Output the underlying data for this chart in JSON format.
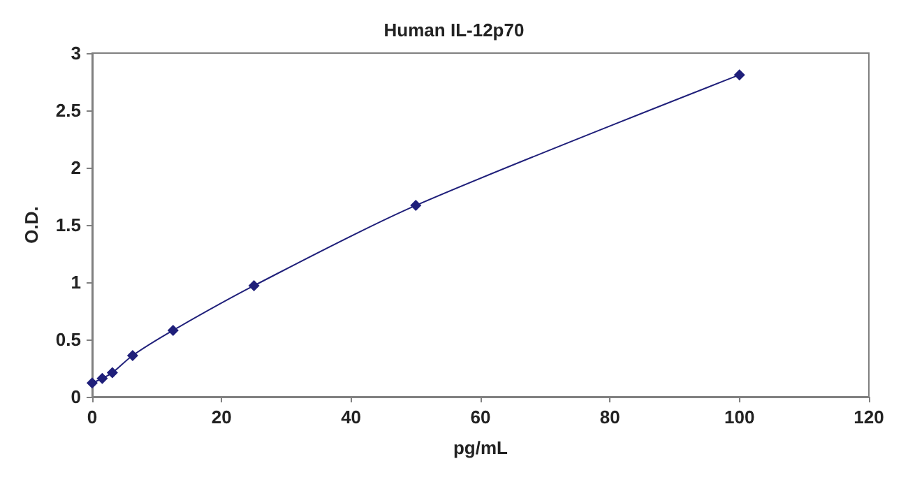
{
  "chart_data": {
    "type": "line",
    "title": "Human IL-12p70",
    "xlabel": "pg/mL",
    "ylabel": "O.D.",
    "x": [
      0,
      1.56,
      3.125,
      6.25,
      12.5,
      25,
      50,
      100
    ],
    "series": [
      {
        "color": "#1f1f7a",
        "values": [
          0.12,
          0.16,
          0.21,
          0.36,
          0.58,
          0.97,
          1.67,
          2.81
        ]
      }
    ],
    "xlim": [
      0,
      120
    ],
    "xticks": [
      0,
      20,
      40,
      60,
      80,
      100,
      120
    ],
    "ylim": [
      0,
      3
    ],
    "yticks": [
      0,
      0.5,
      1,
      1.5,
      2,
      2.5,
      3
    ],
    "grid": false,
    "marker": "diamond",
    "line_style": "solid"
  }
}
